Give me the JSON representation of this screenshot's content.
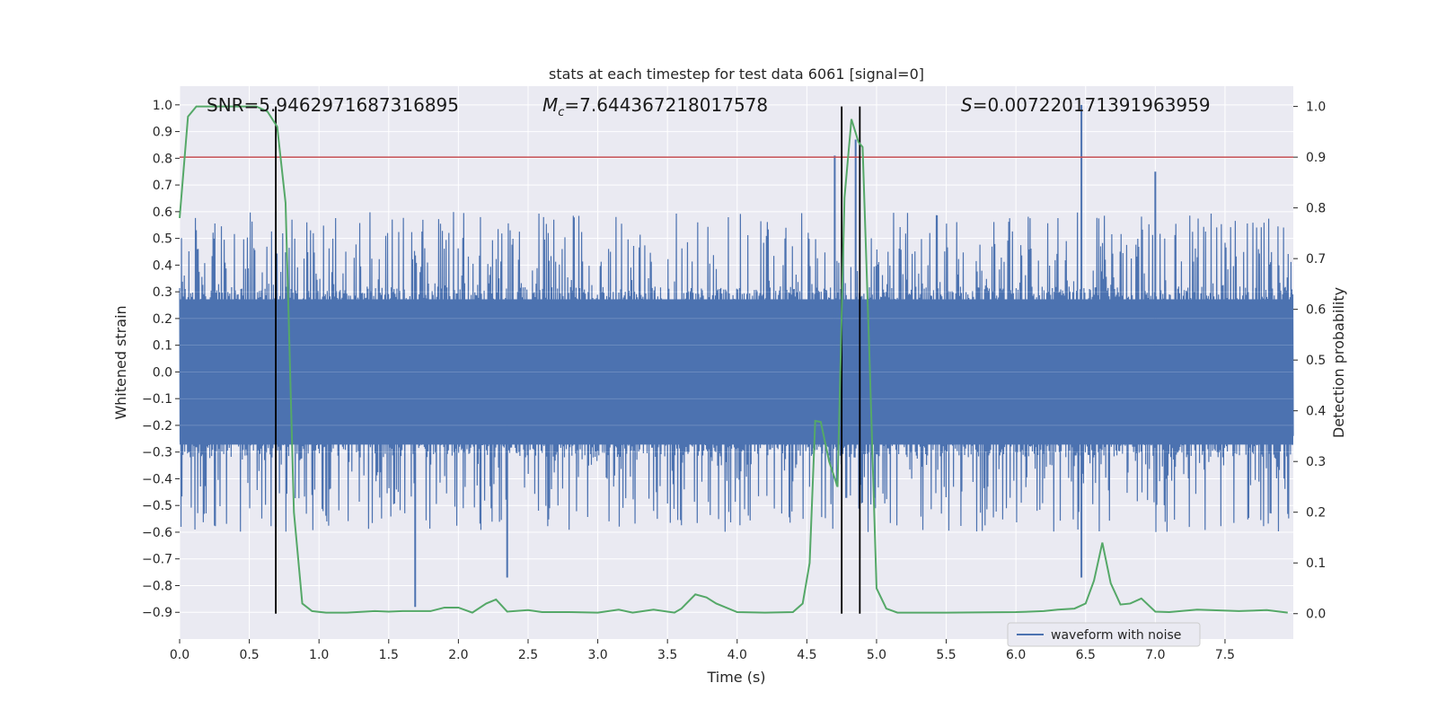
{
  "chart_data": {
    "type": "line",
    "title": "stats at each timestep for test data 6061 [signal=0]",
    "xlabel": "Time (s)",
    "ylabel_left": "Whitened strain",
    "ylabel_right": "Detection probability",
    "xlim": [
      0,
      7.99
    ],
    "ylim_left": [
      -1.0,
      1.07
    ],
    "ylim_right": [
      -0.05,
      1.04
    ],
    "x_ticks": [
      0.0,
      0.5,
      1.0,
      1.5,
      2.0,
      2.5,
      3.0,
      3.5,
      4.0,
      4.5,
      5.0,
      5.5,
      6.0,
      6.5,
      7.0,
      7.5
    ],
    "x_tick_labels": [
      "0.0",
      "0.5",
      "1.0",
      "1.5",
      "2.0",
      "2.5",
      "3.0",
      "3.5",
      "4.0",
      "4.5",
      "5.0",
      "5.5",
      "6.0",
      "6.5",
      "7.0",
      "7.5"
    ],
    "y_left_ticks": [
      -0.9,
      -0.8,
      -0.7,
      -0.6,
      -0.5,
      -0.4,
      -0.3,
      -0.2,
      -0.1,
      0.0,
      0.1,
      0.2,
      0.3,
      0.4,
      0.5,
      0.6,
      0.7,
      0.8,
      0.9,
      1.0
    ],
    "y_left_tick_labels": [
      "−0.9",
      "−0.8",
      "−0.7",
      "−0.6",
      "−0.5",
      "−0.4",
      "−0.3",
      "−0.2",
      "−0.1",
      "0.0",
      "0.1",
      "0.2",
      "0.3",
      "0.4",
      "0.5",
      "0.6",
      "0.7",
      "0.8",
      "0.9",
      "1.0"
    ],
    "y_right_ticks": [
      0.0,
      0.1,
      0.2,
      0.3,
      0.4,
      0.5,
      0.6,
      0.7,
      0.8,
      0.9,
      1.0
    ],
    "y_right_tick_labels": [
      "0.0",
      "0.1",
      "0.2",
      "0.3",
      "0.4",
      "0.5",
      "0.6",
      "0.7",
      "0.8",
      "0.9",
      "1.0"
    ],
    "grid": true,
    "annotations": {
      "snr": "SNR=5.9462971687316895",
      "mc_symbol": "M",
      "mc_subscript": "c",
      "mc_value": "=7.644367218017578",
      "s_symbol": "S",
      "s_value": "=0.007220171391963959"
    },
    "threshold_right": 0.9,
    "vertical_lines_x": [
      0.69,
      4.75,
      4.88
    ],
    "legend": {
      "placement": "lower-right",
      "entries": [
        "waveform with noise"
      ]
    },
    "series": [
      {
        "name": "waveform with noise",
        "axis": "left",
        "kind": "noise",
        "duration_s": 7.99,
        "core_amplitude": 0.32,
        "peak_envelope_amplitude": 0.6,
        "notable_peaks": [
          {
            "x": 0.69,
            "y": 0.6
          },
          {
            "x": 0.69,
            "y": -0.58
          },
          {
            "x": 1.69,
            "y": -0.88
          },
          {
            "x": 2.35,
            "y": -0.77
          },
          {
            "x": 4.7,
            "y": 0.81
          },
          {
            "x": 4.85,
            "y": 0.87
          },
          {
            "x": 6.47,
            "y": 1.0
          },
          {
            "x": 6.47,
            "y": -0.77
          },
          {
            "x": 7.0,
            "y": 0.75
          }
        ]
      },
      {
        "name": "",
        "axis": "right",
        "kind": "line",
        "x": [
          0.0,
          0.06,
          0.12,
          0.25,
          0.4,
          0.55,
          0.63,
          0.7,
          0.76,
          0.82,
          0.88,
          0.95,
          1.05,
          1.2,
          1.4,
          1.5,
          1.6,
          1.8,
          1.9,
          2.0,
          2.1,
          2.2,
          2.27,
          2.35,
          2.5,
          2.6,
          2.8,
          3.0,
          3.15,
          3.25,
          3.4,
          3.55,
          3.6,
          3.7,
          3.78,
          3.85,
          4.0,
          4.2,
          4.4,
          4.47,
          4.52,
          4.56,
          4.6,
          4.66,
          4.72,
          4.77,
          4.82,
          4.87,
          4.9,
          4.95,
          5.0,
          5.07,
          5.15,
          5.5,
          6.0,
          6.2,
          6.3,
          6.42,
          6.5,
          6.56,
          6.62,
          6.68,
          6.75,
          6.82,
          6.9,
          7.0,
          7.1,
          7.3,
          7.6,
          7.8,
          7.95
        ],
        "y": [
          0.78,
          0.98,
          1.0,
          1.0,
          1.0,
          1.0,
          0.99,
          0.96,
          0.81,
          0.2,
          0.02,
          0.005,
          0.002,
          0.002,
          0.005,
          0.004,
          0.005,
          0.005,
          0.012,
          0.012,
          0.002,
          0.02,
          0.028,
          0.004,
          0.007,
          0.003,
          0.003,
          0.002,
          0.008,
          0.002,
          0.008,
          0.002,
          0.01,
          0.038,
          0.032,
          0.02,
          0.003,
          0.002,
          0.003,
          0.02,
          0.1,
          0.38,
          0.378,
          0.3,
          0.25,
          0.82,
          0.975,
          0.93,
          0.92,
          0.5,
          0.05,
          0.01,
          0.002,
          0.002,
          0.003,
          0.005,
          0.008,
          0.01,
          0.02,
          0.065,
          0.14,
          0.06,
          0.018,
          0.02,
          0.03,
          0.004,
          0.003,
          0.008,
          0.005,
          0.007,
          0.002
        ]
      }
    ]
  },
  "colors": {
    "background_plot": "#eaeaf2",
    "grid": "#ffffff",
    "noise": "#4c72b0",
    "probability": "#55a868",
    "threshold": "#c44e52",
    "vertical_line": "#000000",
    "text": "#262626"
  }
}
